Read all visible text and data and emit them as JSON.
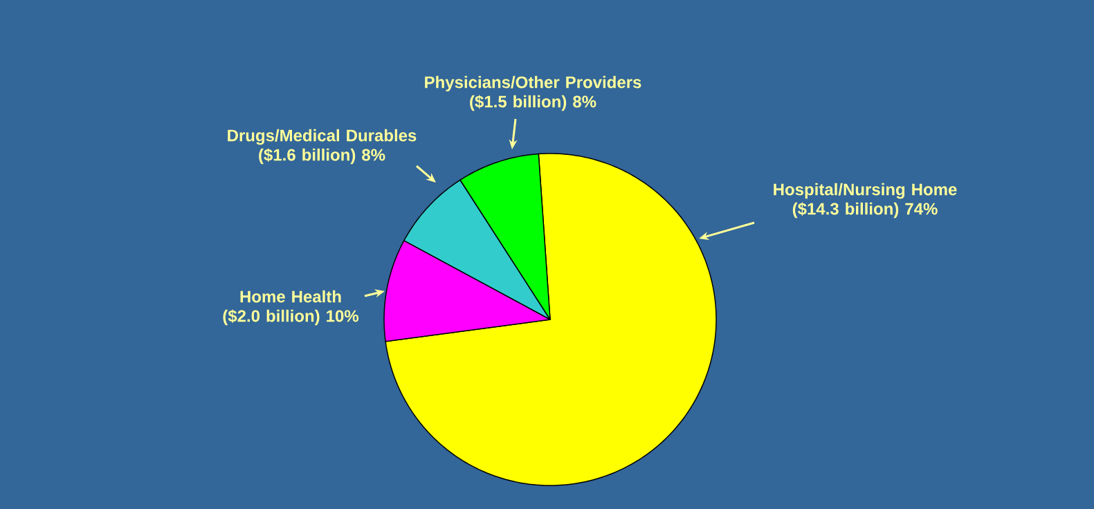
{
  "chart_data": {
    "type": "pie",
    "categories": [
      "Hospital/Nursing Home",
      "Home Health",
      "Drugs/Medical Durables",
      "Physicians/Other Providers"
    ],
    "values": [
      74,
      10,
      8,
      8
    ],
    "colors": [
      "#ffff00",
      "#ff00ff",
      "#33cccc",
      "#00ff00"
    ],
    "value_labels": [
      "($14.3 billion) 74%",
      "($2.0 billion) 10%",
      "($1.6 billion) 8%",
      "($1.5 billion) 8%"
    ]
  }
}
